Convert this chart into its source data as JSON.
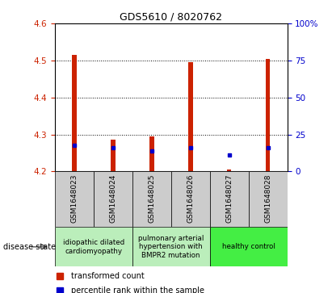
{
  "title": "GDS5610 / 8020762",
  "samples": [
    "GSM1648023",
    "GSM1648024",
    "GSM1648025",
    "GSM1648026",
    "GSM1648027",
    "GSM1648028"
  ],
  "red_values": [
    4.515,
    4.285,
    4.295,
    4.495,
    4.205,
    4.505
  ],
  "blue_values": [
    4.27,
    4.265,
    4.255,
    4.265,
    4.245,
    4.265
  ],
  "ylim": [
    4.2,
    4.6
  ],
  "y_left_ticks": [
    4.2,
    4.3,
    4.4,
    4.5,
    4.6
  ],
  "y_right_ticks": [
    0,
    25,
    50,
    75,
    100
  ],
  "y_right_labels": [
    "0",
    "25",
    "50",
    "75",
    "100%"
  ],
  "disease_configs": [
    {
      "xstart": 0,
      "xend": 2,
      "label": "idiopathic dilated\ncardiomyopathy",
      "color": "#bbeebb"
    },
    {
      "xstart": 2,
      "xend": 4,
      "label": "pulmonary arterial\nhypertension with\nBMPR2 mutation",
      "color": "#bbeebb"
    },
    {
      "xstart": 4,
      "xend": 6,
      "label": "healthy control",
      "color": "#44ee44"
    }
  ],
  "bg_color_sample": "#cccccc",
  "red_color": "#cc2200",
  "blue_color": "#0000cc",
  "legend_red": "transformed count",
  "legend_blue": "percentile rank within the sample",
  "bar_width": 0.12
}
